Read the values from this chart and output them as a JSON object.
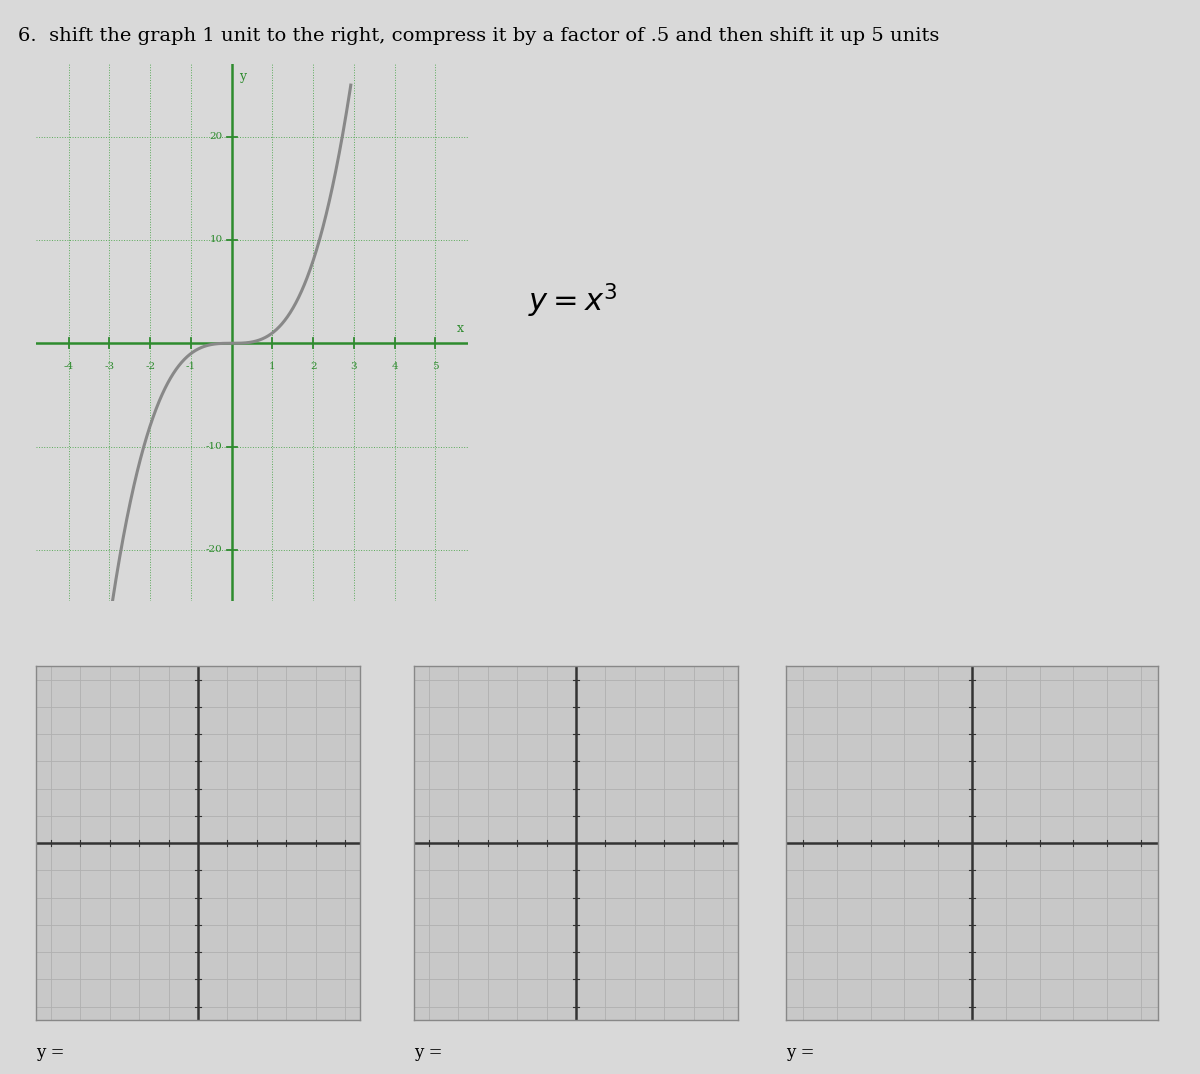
{
  "title": "6.  shift the graph 1 unit to the right, compress it by a factor of .5 and then shift it up 5 units",
  "title_fontsize": 14,
  "bg_color": "#d9d9d9",
  "main_graph": {
    "xlim": [
      -4.8,
      5.8
    ],
    "ylim": [
      -25,
      27
    ],
    "xticks": [
      -4,
      -3,
      -2,
      -1,
      1,
      2,
      3,
      4,
      5
    ],
    "yticks": [
      -20,
      -10,
      10,
      20
    ],
    "curve_color": "#888888",
    "axis_color": "#2e8b2e",
    "grid_color": "#5aaa5a",
    "label_y": "y",
    "label_x": "x",
    "equation": "$y = x^3$"
  },
  "blank_ylabel": "y =",
  "grid_bg": "#c8c8c8",
  "grid_line_color": "#b0b0b0",
  "grid_axis_color": "#333333"
}
